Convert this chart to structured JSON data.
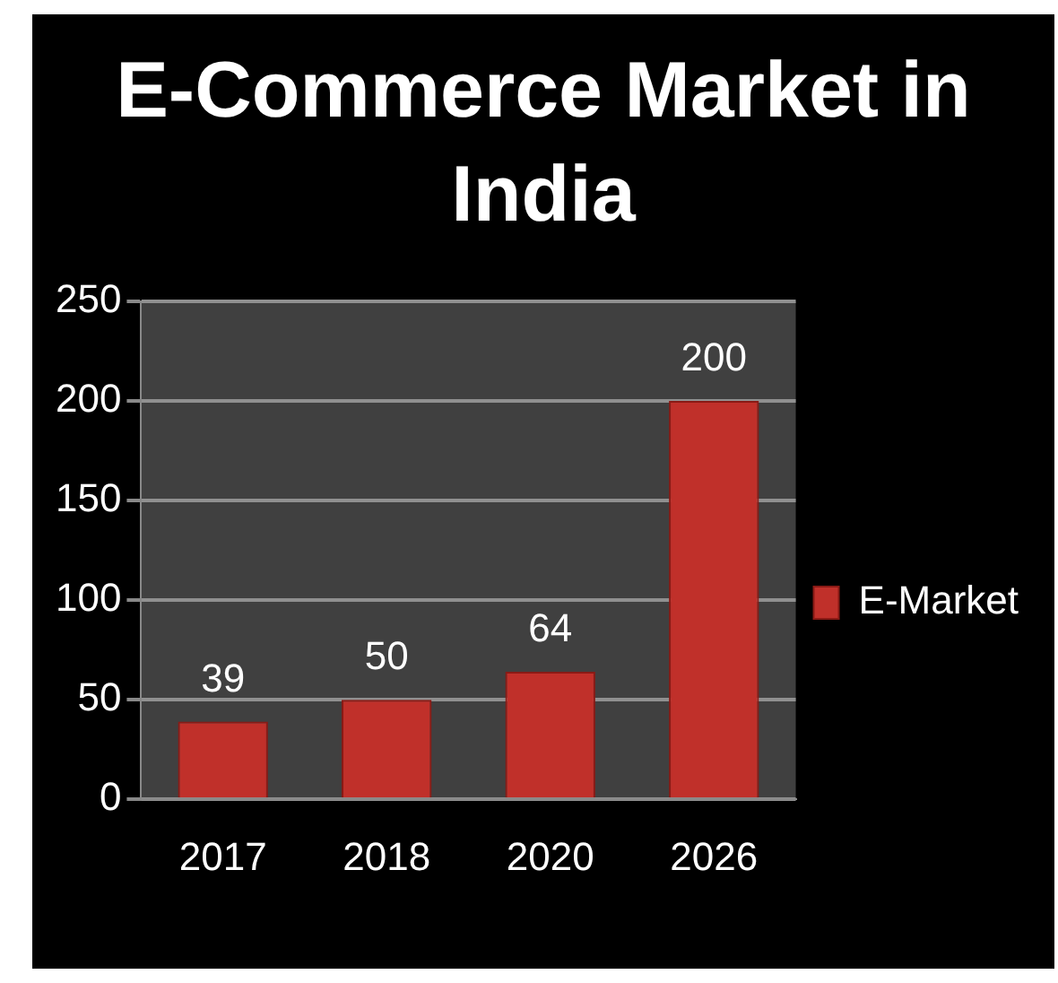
{
  "chart_data": {
    "type": "bar",
    "title": "E-Commerce Market in India",
    "categories": [
      "2017",
      "2018",
      "2020",
      "2026"
    ],
    "series": [
      {
        "name": "E-Market",
        "color": "#c0302a",
        "values": [
          39,
          50,
          64,
          200
        ]
      }
    ],
    "ylim": [
      0,
      250
    ],
    "yticks": [
      0,
      50,
      100,
      150,
      200,
      250
    ],
    "grid": "y",
    "legend": "right",
    "data_labels": true
  }
}
